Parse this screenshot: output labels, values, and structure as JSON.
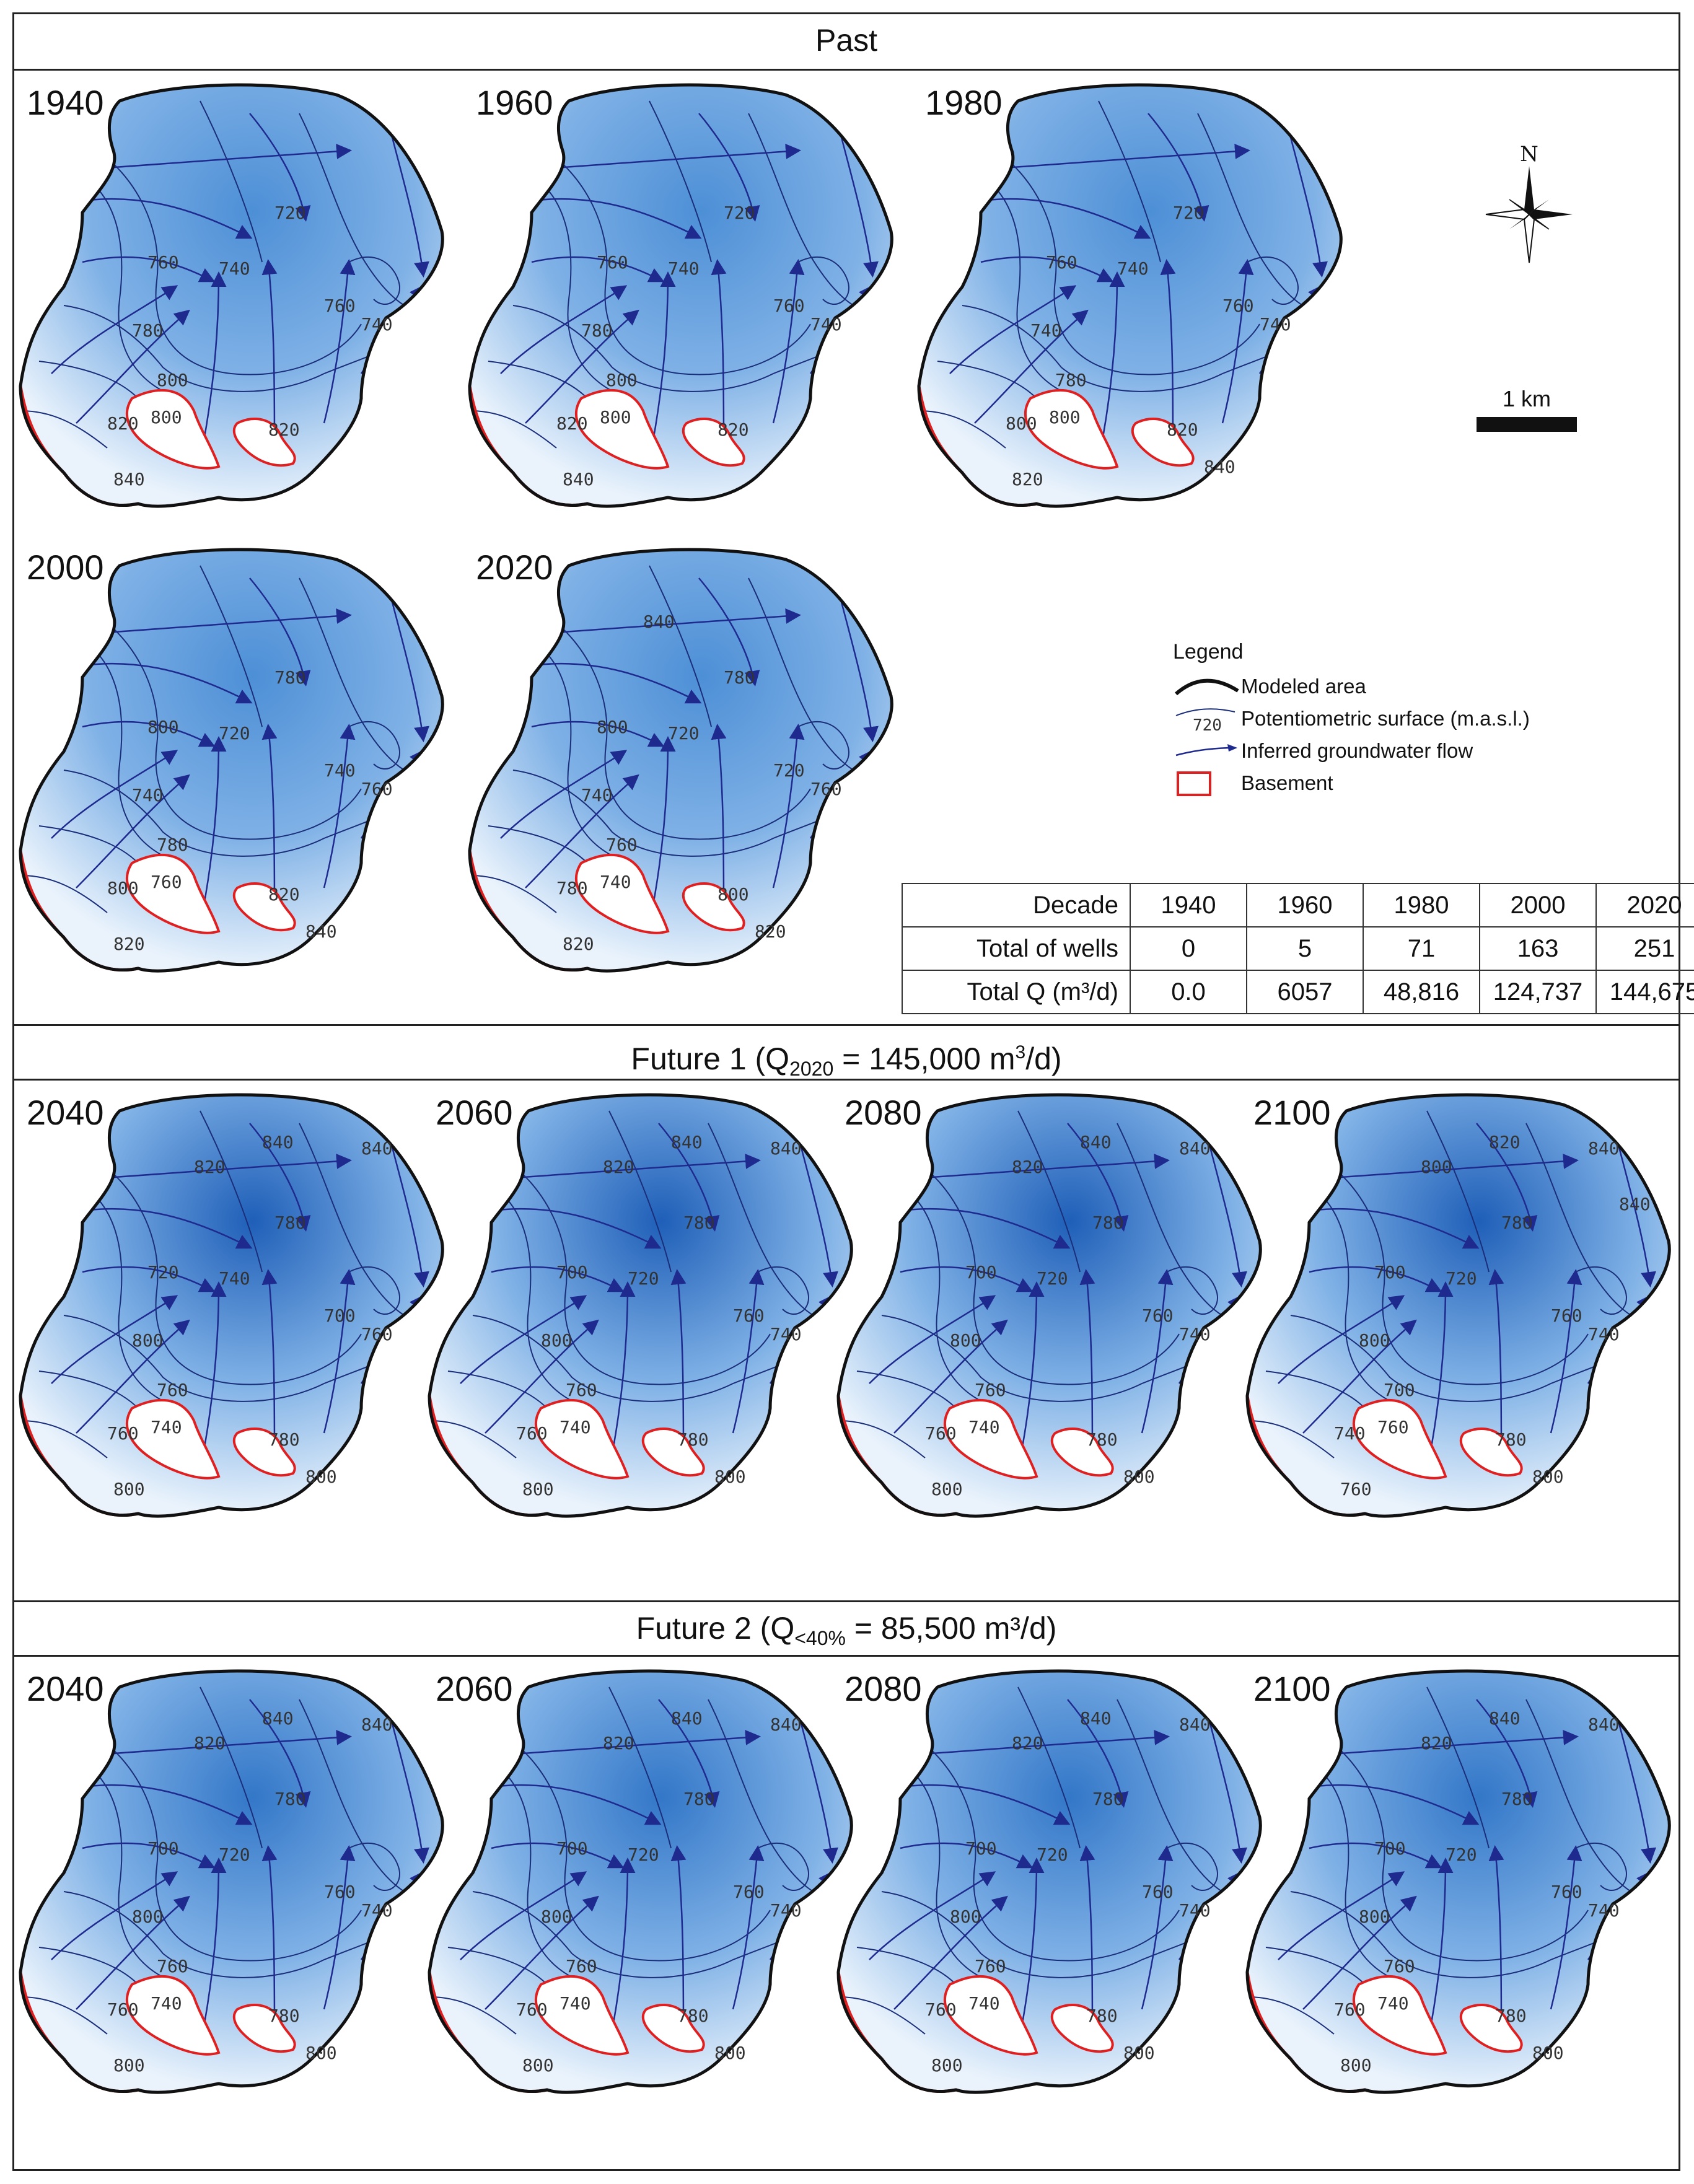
{
  "sections": {
    "past": {
      "title": "Past"
    },
    "future1": {
      "title_prefix": "Future 1 (Q",
      "title_sub": "2020",
      "title_mid": " = 145,000 m",
      "title_sup": "3",
      "title_suffix": "/d)"
    },
    "future2": {
      "title_prefix": "Future 2 (Q",
      "title_sub": "<40%",
      "title_suffix": " = 85,500 m³/d)"
    }
  },
  "panels": {
    "past": [
      {
        "year": "1940",
        "contours": [
          "720",
          "740",
          "760",
          "760",
          "740",
          "780",
          "800",
          "800",
          "820",
          "820",
          "840"
        ]
      },
      {
        "year": "1960",
        "contours": [
          "720",
          "740",
          "760",
          "760",
          "740",
          "780",
          "800",
          "800",
          "820",
          "820",
          "840"
        ]
      },
      {
        "year": "1980",
        "contours": [
          "720",
          "740",
          "760",
          "760",
          "740",
          "740",
          "780",
          "800",
          "800",
          "820",
          "820",
          "840"
        ]
      },
      {
        "year": "2000",
        "contours": [
          "780",
          "720",
          "800",
          "740",
          "760",
          "740",
          "780",
          "760",
          "800",
          "820",
          "820",
          "840"
        ]
      },
      {
        "year": "2020",
        "contours": [
          "780",
          "720",
          "800",
          "720",
          "760",
          "740",
          "760",
          "740",
          "780",
          "800",
          "820",
          "820",
          "840"
        ]
      }
    ],
    "future1": [
      {
        "year": "2040",
        "contours": [
          "780",
          "740",
          "720",
          "700",
          "760",
          "800",
          "760",
          "740",
          "760",
          "780",
          "800",
          "800",
          "820",
          "840",
          "840"
        ]
      },
      {
        "year": "2060",
        "contours": [
          "780",
          "720",
          "700",
          "760",
          "740",
          "800",
          "760",
          "740",
          "760",
          "780",
          "800",
          "800",
          "820",
          "840",
          "840"
        ]
      },
      {
        "year": "2080",
        "contours": [
          "780",
          "720",
          "700",
          "760",
          "740",
          "800",
          "760",
          "740",
          "760",
          "780",
          "800",
          "800",
          "820",
          "840",
          "840"
        ]
      },
      {
        "year": "2100",
        "contours": [
          "780",
          "720",
          "700",
          "760",
          "740",
          "800",
          "700",
          "760",
          "740",
          "780",
          "760",
          "800",
          "800",
          "820",
          "840",
          "840"
        ]
      }
    ],
    "future2": [
      {
        "year": "2040",
        "contours": [
          "780",
          "720",
          "700",
          "760",
          "740",
          "800",
          "760",
          "740",
          "760",
          "780",
          "800",
          "800",
          "820",
          "840",
          "840"
        ]
      },
      {
        "year": "2060",
        "contours": [
          "780",
          "720",
          "700",
          "760",
          "740",
          "800",
          "760",
          "740",
          "760",
          "780",
          "800",
          "800",
          "820",
          "840",
          "840"
        ]
      },
      {
        "year": "2080",
        "contours": [
          "780",
          "720",
          "700",
          "760",
          "740",
          "800",
          "760",
          "740",
          "760",
          "780",
          "800",
          "800",
          "820",
          "840",
          "840"
        ]
      },
      {
        "year": "2100",
        "contours": [
          "780",
          "720",
          "700",
          "760",
          "740",
          "800",
          "760",
          "740",
          "760",
          "780",
          "800",
          "800",
          "820",
          "840",
          "840"
        ]
      }
    ]
  },
  "compass": {
    "label": "N"
  },
  "scale": {
    "label": "1 km"
  },
  "legend": {
    "title": "Legend",
    "items": [
      {
        "label": "Modeled area",
        "symbol": "thick-black-line"
      },
      {
        "label": "Potentiometric surface (m.a.s.l.)",
        "symbol": "contour-line",
        "sample": "720"
      },
      {
        "label": "Inferred groundwater flow",
        "symbol": "blue-arrow"
      },
      {
        "label": "Basement",
        "symbol": "red-box"
      }
    ]
  },
  "wells_table": {
    "header": [
      "Decade",
      "1940",
      "1960",
      "1980",
      "2000",
      "2020"
    ],
    "rows": [
      {
        "label": "Total of wells",
        "values": [
          "0",
          "5",
          "71",
          "163",
          "251"
        ]
      },
      {
        "label": "Total Q (m³/d)",
        "values": [
          "0.0",
          "6057",
          "48,816",
          "124,737",
          "144,675"
        ]
      }
    ]
  },
  "colors": {
    "water": "#2f6fc0",
    "contour": "#1a2e7a",
    "flow": "#1f2a8f",
    "basement": "#e02020",
    "outline": "#111111"
  }
}
